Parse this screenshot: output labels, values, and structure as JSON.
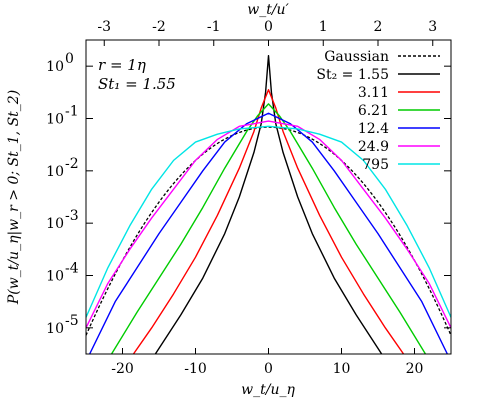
{
  "chart_data": {
    "type": "line",
    "xlabel": "w_t/u_η",
    "ylabel": "P(w_t/u_η|w_r > 0; St_1, St_2)",
    "top_xlabel": "w_t/u′",
    "xlim": [
      -25,
      25
    ],
    "ylim_log10": [
      -5.5,
      0.5
    ],
    "y_scale": "log",
    "x_ticks": [
      "-20",
      "-10",
      "0",
      "10",
      "20"
    ],
    "x_tick_values": [
      -20,
      -10,
      0,
      10,
      20
    ],
    "top_x_ticks": [
      "-3",
      "-2",
      "-1",
      "0",
      "1",
      "2",
      "3"
    ],
    "top_x_tick_values": [
      -3,
      -2,
      -1,
      0,
      1,
      2,
      3
    ],
    "top_scale": 7.5,
    "y_ticks": [
      {
        "base": "10",
        "exp": "0",
        "log": 0
      },
      {
        "base": "10",
        "exp": "-1",
        "log": -1
      },
      {
        "base": "10",
        "exp": "-2",
        "log": -2
      },
      {
        "base": "10",
        "exp": "-3",
        "log": -3
      },
      {
        "base": "10",
        "exp": "-4",
        "log": -4
      },
      {
        "base": "10",
        "exp": "-5",
        "log": -5
      }
    ],
    "annotations": [
      "r = 1η",
      "St₁ = 1.55"
    ],
    "legend_position": "top-right",
    "gaussian": {
      "name": "Gaussian",
      "color": "#000000",
      "dash": true,
      "sigma": 5.84
    },
    "series": [
      {
        "name": "St₂ = 1.55",
        "color": "#000000",
        "x": [
          -15.5,
          -12,
          -9,
          -6,
          -4,
          -2,
          -1,
          -0.4,
          0,
          0.4,
          1,
          2,
          4,
          6,
          9,
          12,
          15.5
        ],
        "y": [
          -5.5,
          -4.75,
          -4.05,
          -3.2,
          -2.5,
          -1.65,
          -1.1,
          -0.5,
          0.2,
          -0.5,
          -1.1,
          -1.65,
          -2.5,
          -3.2,
          -4.05,
          -4.75,
          -5.5
        ]
      },
      {
        "name": "3.11",
        "color": "#ff0000",
        "x": [
          -18.5,
          -16,
          -13,
          -10,
          -7,
          -4,
          -2,
          -1,
          0,
          1,
          2,
          4,
          7,
          10,
          13,
          16,
          18.5
        ],
        "y": [
          -5.5,
          -5.0,
          -4.35,
          -3.65,
          -2.85,
          -1.95,
          -1.25,
          -0.8,
          -0.45,
          -0.8,
          -1.25,
          -1.95,
          -2.85,
          -3.65,
          -4.35,
          -5.0,
          -5.5
        ]
      },
      {
        "name": "6.21",
        "color": "#00cc00",
        "x": [
          -21.5,
          -18,
          -15,
          -12,
          -9,
          -6,
          -3,
          -1.5,
          0,
          1.5,
          3,
          6,
          9,
          12,
          15,
          18,
          21.5
        ],
        "y": [
          -5.5,
          -4.7,
          -4.05,
          -3.4,
          -2.7,
          -1.95,
          -1.25,
          -0.95,
          -0.72,
          -0.95,
          -1.25,
          -1.95,
          -2.7,
          -3.4,
          -4.05,
          -4.7,
          -5.5
        ]
      },
      {
        "name": "12.4",
        "color": "#0000ff",
        "x": [
          -24.5,
          -21,
          -18,
          -15,
          -12,
          -9,
          -6,
          -3,
          0,
          3,
          6,
          9,
          12,
          15,
          18,
          21,
          24.5
        ],
        "y": [
          -5.5,
          -4.5,
          -3.85,
          -3.2,
          -2.6,
          -2.0,
          -1.45,
          -1.1,
          -0.9,
          -1.1,
          -1.45,
          -2.0,
          -2.6,
          -3.2,
          -3.85,
          -4.5,
          -5.5
        ]
      },
      {
        "name": "24.9",
        "color": "#ff00ff",
        "x": [
          -25,
          -22,
          -19,
          -16,
          -13,
          -10,
          -7,
          -4,
          0,
          4,
          7,
          10,
          13,
          16,
          19,
          22,
          25
        ],
        "y": [
          -5.0,
          -4.15,
          -3.5,
          -2.9,
          -2.35,
          -1.8,
          -1.4,
          -1.15,
          -1.05,
          -1.15,
          -1.4,
          -1.8,
          -2.35,
          -2.9,
          -3.5,
          -4.15,
          -5.0
        ]
      },
      {
        "name": "795",
        "color": "#00e5e5",
        "x": [
          -25,
          -22,
          -19,
          -16,
          -13,
          -10,
          -7,
          -4,
          0,
          4,
          7,
          10,
          13,
          16,
          19,
          22,
          25
        ],
        "y": [
          -4.8,
          -3.85,
          -3.05,
          -2.35,
          -1.8,
          -1.45,
          -1.3,
          -1.2,
          -1.15,
          -1.2,
          -1.3,
          -1.45,
          -1.8,
          -2.35,
          -3.05,
          -3.85,
          -4.8
        ]
      }
    ]
  }
}
